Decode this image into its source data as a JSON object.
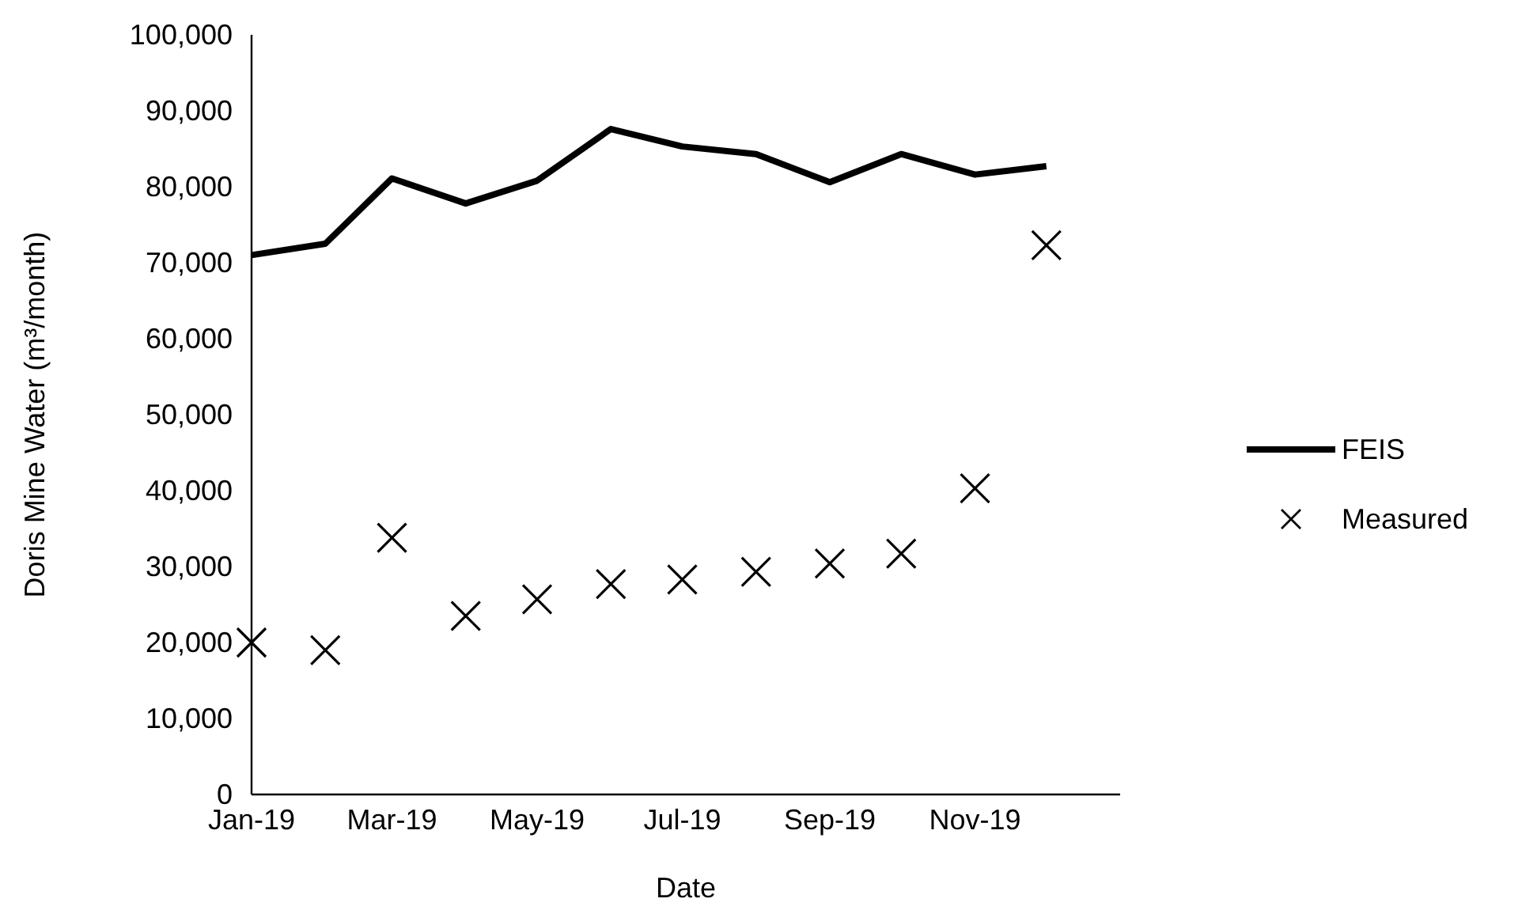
{
  "chart_data": {
    "type": "line",
    "xlabel": "Date",
    "ylabel": "Doris Mine Water (m³/month)",
    "x": [
      "2019-01",
      "2019-02",
      "2019-03",
      "2019-04",
      "2019-05",
      "2019-06",
      "2019-07",
      "2019-08",
      "2019-09",
      "2019-10",
      "2019-11",
      "2019-12"
    ],
    "series": [
      {
        "name": "FEIS",
        "color": "#000000",
        "marker": "none",
        "line_style": "solid",
        "values": [
          71000,
          72500,
          81100,
          77800,
          80800,
          87600,
          85300,
          84300,
          80600,
          84300,
          81600,
          82700
        ]
      },
      {
        "name": "Measured",
        "type": "scatter",
        "color": "#000000",
        "marker": "cross",
        "values": [
          20000,
          19000,
          33800,
          23500,
          25700,
          27700,
          28300,
          29300,
          30400,
          31700,
          40300,
          72300
        ]
      }
    ],
    "xlim": [
      "2019-01",
      "2020-01"
    ],
    "xticks": [
      {
        "value": "2019-01",
        "label": "Jan-19"
      },
      {
        "value": "2019-03",
        "label": "Mar-19"
      },
      {
        "value": "2019-05",
        "label": "May-19"
      },
      {
        "value": "2019-07",
        "label": "Jul-19"
      },
      {
        "value": "2019-09",
        "label": "Sep-19"
      },
      {
        "value": "2019-11",
        "label": "Nov-19"
      }
    ],
    "ylim": [
      0,
      100000
    ],
    "yticks": [
      {
        "value": 0,
        "label": "0"
      },
      {
        "value": 10000,
        "label": "10,000"
      },
      {
        "value": 20000,
        "label": "20,000"
      },
      {
        "value": 30000,
        "label": "30,000"
      },
      {
        "value": 40000,
        "label": "40,000"
      },
      {
        "value": 50000,
        "label": "50,000"
      },
      {
        "value": 60000,
        "label": "60,000"
      },
      {
        "value": 70000,
        "label": "70,000"
      },
      {
        "value": 80000,
        "label": "80,000"
      },
      {
        "value": 90000,
        "label": "90,000"
      },
      {
        "value": 100000,
        "label": "100,000"
      }
    ],
    "grid": false,
    "legend": "right"
  }
}
